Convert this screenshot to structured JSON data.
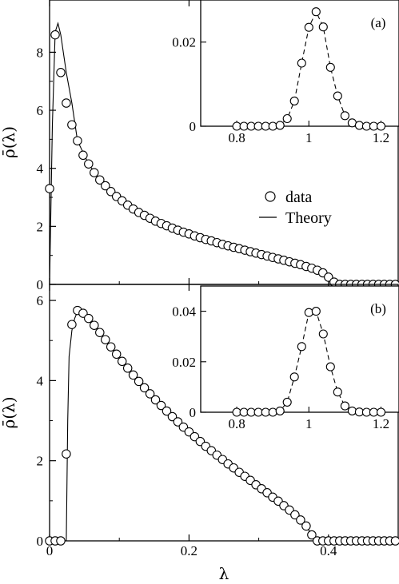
{
  "chart_data": [
    {
      "id": "panel-a",
      "type": "scatter",
      "panel_label": "(a)",
      "ylabel": "ρ̄(λ)",
      "xlabel": "",
      "xlim": [
        0,
        0.5
      ],
      "ylim": [
        0,
        9.8
      ],
      "yticks": [
        0,
        2,
        4,
        6,
        8
      ],
      "xticks": [
        0,
        0.2,
        0.4
      ],
      "show_x_tick_labels": false,
      "legend": {
        "placement": "center-right",
        "entries": [
          {
            "label": "data",
            "marker": "circle"
          },
          {
            "label": "Theory",
            "marker": "line"
          }
        ]
      },
      "series": [
        {
          "name": "data",
          "kind": "points",
          "x": [
            0.0,
            0.008,
            0.016,
            0.024,
            0.032,
            0.04,
            0.048,
            0.056,
            0.064,
            0.072,
            0.08,
            0.088,
            0.096,
            0.104,
            0.112,
            0.12,
            0.128,
            0.136,
            0.144,
            0.152,
            0.16,
            0.168,
            0.176,
            0.184,
            0.192,
            0.2,
            0.208,
            0.216,
            0.224,
            0.232,
            0.24,
            0.248,
            0.256,
            0.264,
            0.272,
            0.28,
            0.288,
            0.296,
            0.304,
            0.312,
            0.32,
            0.328,
            0.336,
            0.344,
            0.352,
            0.36,
            0.368,
            0.376,
            0.384,
            0.392,
            0.4,
            0.408,
            0.416,
            0.424,
            0.432,
            0.44,
            0.448,
            0.456,
            0.464,
            0.472,
            0.48,
            0.488,
            0.496
          ],
          "y": [
            3.3,
            8.6,
            7.3,
            6.25,
            5.5,
            4.95,
            4.45,
            4.15,
            3.85,
            3.6,
            3.4,
            3.2,
            3.03,
            2.88,
            2.73,
            2.6,
            2.48,
            2.38,
            2.28,
            2.18,
            2.1,
            2.02,
            1.94,
            1.87,
            1.8,
            1.74,
            1.67,
            1.61,
            1.55,
            1.5,
            1.44,
            1.38,
            1.33,
            1.28,
            1.23,
            1.18,
            1.13,
            1.08,
            1.03,
            0.98,
            0.93,
            0.88,
            0.83,
            0.78,
            0.73,
            0.68,
            0.62,
            0.56,
            0.49,
            0.4,
            0.25,
            0.08,
            0.0,
            0.0,
            0.0,
            0.0,
            0.0,
            0.0,
            0.0,
            0.0,
            0.0,
            0.0,
            0.0
          ]
        },
        {
          "name": "Theory",
          "kind": "line",
          "x": [
            0.0,
            0.004,
            0.008,
            0.012,
            0.016,
            0.024,
            0.032,
            0.04,
            0.056,
            0.072,
            0.088,
            0.104,
            0.12,
            0.144,
            0.168,
            0.2,
            0.232,
            0.264,
            0.296,
            0.328,
            0.36,
            0.384,
            0.4,
            0.406,
            0.41
          ],
          "y": [
            0.0,
            5.5,
            8.7,
            9.0,
            8.6,
            7.3,
            6.25,
            4.95,
            4.15,
            3.6,
            3.2,
            2.88,
            2.6,
            2.28,
            2.02,
            1.74,
            1.5,
            1.28,
            1.08,
            0.88,
            0.68,
            0.49,
            0.25,
            0.1,
            0.0
          ]
        }
      ],
      "inset": {
        "xlim": [
          0.7,
          1.25
        ],
        "ylim": [
          0,
          0.03
        ],
        "xticks": [
          0.8,
          1,
          1.2
        ],
        "yticks": [
          0,
          0.02
        ],
        "x": [
          0.8,
          0.82,
          0.84,
          0.86,
          0.88,
          0.9,
          0.92,
          0.94,
          0.96,
          0.98,
          1.0,
          1.02,
          1.04,
          1.06,
          1.08,
          1.1,
          1.12,
          1.14,
          1.16,
          1.18,
          1.2
        ],
        "y": [
          0,
          0,
          0,
          0,
          0,
          0,
          0.0002,
          0.0018,
          0.006,
          0.015,
          0.0235,
          0.0272,
          0.0236,
          0.014,
          0.0072,
          0.0025,
          0.0008,
          0.0002,
          0,
          0,
          0
        ]
      }
    },
    {
      "id": "panel-b",
      "type": "scatter",
      "panel_label": "(b)",
      "ylabel": "ρ̄(λ)",
      "xlabel": "λ",
      "xlim": [
        0,
        0.5
      ],
      "ylim": [
        0,
        6.4
      ],
      "yticks": [
        0,
        2,
        4,
        6
      ],
      "xticks": [
        0,
        0.2,
        0.4
      ],
      "show_x_tick_labels": true,
      "series": [
        {
          "name": "data",
          "kind": "points",
          "x": [
            0.0,
            0.008,
            0.016,
            0.024,
            0.032,
            0.04,
            0.048,
            0.056,
            0.064,
            0.072,
            0.08,
            0.088,
            0.096,
            0.104,
            0.112,
            0.12,
            0.128,
            0.136,
            0.144,
            0.152,
            0.16,
            0.168,
            0.176,
            0.184,
            0.192,
            0.2,
            0.208,
            0.216,
            0.224,
            0.232,
            0.24,
            0.248,
            0.256,
            0.264,
            0.272,
            0.28,
            0.288,
            0.296,
            0.304,
            0.312,
            0.32,
            0.328,
            0.336,
            0.344,
            0.352,
            0.36,
            0.368,
            0.376,
            0.384,
            0.392,
            0.4,
            0.408,
            0.416,
            0.424,
            0.432,
            0.44,
            0.448,
            0.456,
            0.464,
            0.472,
            0.48,
            0.488,
            0.496
          ],
          "y": [
            0.0,
            0.0,
            0.0,
            2.17,
            5.4,
            5.75,
            5.68,
            5.55,
            5.38,
            5.2,
            5.02,
            4.84,
            4.66,
            4.48,
            4.31,
            4.14,
            3.98,
            3.82,
            3.67,
            3.52,
            3.38,
            3.24,
            3.1,
            2.97,
            2.84,
            2.72,
            2.6,
            2.48,
            2.36,
            2.25,
            2.14,
            2.03,
            1.92,
            1.82,
            1.71,
            1.61,
            1.51,
            1.4,
            1.3,
            1.2,
            1.09,
            0.99,
            0.88,
            0.77,
            0.65,
            0.52,
            0.37,
            0.15,
            0.0,
            0.0,
            0.0,
            0.0,
            0.0,
            0.0,
            0.0,
            0.0,
            0.0,
            0.0,
            0.0,
            0.0,
            0.0,
            0.0,
            0.0
          ]
        },
        {
          "name": "Theory",
          "kind": "line",
          "x": [
            0.0,
            0.024,
            0.026,
            0.028,
            0.032,
            0.036,
            0.04,
            0.044,
            0.048,
            0.056,
            0.072,
            0.088,
            0.104,
            0.12,
            0.144,
            0.168,
            0.2,
            0.232,
            0.264,
            0.296,
            0.328,
            0.352,
            0.368,
            0.376,
            0.38,
            0.384,
            0.5
          ],
          "y": [
            0.0,
            0.0,
            3.0,
            4.6,
            5.25,
            5.55,
            5.72,
            5.78,
            5.72,
            5.55,
            5.2,
            4.84,
            4.48,
            4.14,
            3.67,
            3.24,
            2.72,
            2.25,
            1.82,
            1.4,
            0.99,
            0.65,
            0.37,
            0.15,
            0.05,
            0.0,
            0.0
          ]
        }
      ],
      "inset": {
        "xlim": [
          0.7,
          1.25
        ],
        "ylim": [
          0,
          0.05
        ],
        "xticks": [
          0.8,
          1,
          1.2
        ],
        "yticks": [
          0,
          0.02,
          0.04
        ],
        "x": [
          0.8,
          0.82,
          0.84,
          0.86,
          0.88,
          0.9,
          0.92,
          0.94,
          0.96,
          0.98,
          1.0,
          1.02,
          1.04,
          1.06,
          1.08,
          1.1,
          1.12,
          1.14,
          1.16,
          1.18,
          1.2
        ],
        "y": [
          0,
          0,
          0,
          0,
          0,
          0,
          0.0005,
          0.004,
          0.014,
          0.026,
          0.0395,
          0.04,
          0.031,
          0.018,
          0.008,
          0.0025,
          0.0005,
          0.0001,
          0,
          0,
          0
        ]
      }
    }
  ]
}
